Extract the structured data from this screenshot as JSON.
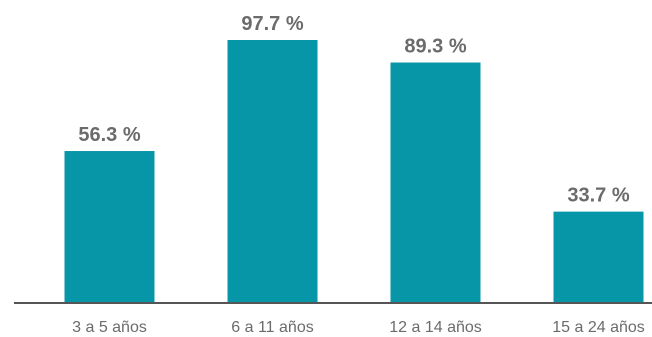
{
  "chart_data": {
    "type": "bar",
    "categories": [
      "3 a 5 años",
      "6 a 11 años",
      "12 a 14 años",
      "15 a 24 años"
    ],
    "values": [
      56.3,
      97.7,
      89.3,
      33.7
    ],
    "data_labels": [
      "56.3 %",
      "97.7 %",
      "89.3 %",
      "33.7 %"
    ],
    "unit": "%",
    "title": "",
    "xlabel": "",
    "ylabel": "",
    "ylim": [
      0,
      100
    ],
    "grid": false,
    "legend": "none",
    "colors": {
      "bar": "#0795a8",
      "axis": "#555555",
      "label": "#6b6b6b"
    }
  }
}
